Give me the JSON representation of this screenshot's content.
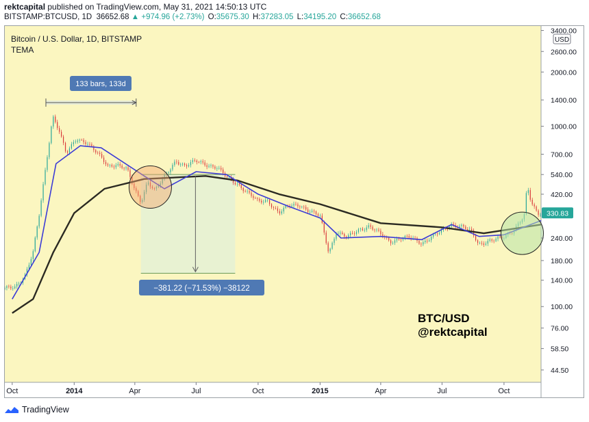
{
  "header": {
    "author": "rektcapital",
    "published_text": "published on TradingView.com, May 31, 2021 14:50:13 UTC",
    "symbol": "BITSTAMP:BTCUSD, 1D",
    "last": "36652.68",
    "change": "▲ +974.96 (+2.73%)",
    "o_label": "O:",
    "o_value": "35675.30",
    "h_label": "H:",
    "h_value": "37283.05",
    "l_label": "L:",
    "l_value": "34195.20",
    "c_label": "C:",
    "c_value": "36652.68"
  },
  "chart_title": "Bitcoin / U.S. Dollar, 1D, BITSTAMP",
  "indicator": "TEMA",
  "currency": "USD",
  "price_tag": "330.83",
  "measure_label": "133 bars, 133d",
  "drop_label": "−381.22 (−71.53%) −38122",
  "watermark_lines": [
    "BTC/USD",
    "@rektcapital"
  ],
  "footer_brand": "TradingView",
  "colors": {
    "background": "#fbf6c0",
    "candle_up": "#26a69a",
    "candle_down": "#d9383a",
    "tema_fast": "#3b3bd6",
    "tema_slow": "#2b2a22",
    "label_box": "#4f79b4"
  },
  "chart_data": {
    "type": "line",
    "y_scale": "log",
    "ylim": [
      38,
      3600
    ],
    "y_ticks": [
      3400,
      2600,
      2000,
      1400,
      1000,
      700,
      540,
      420,
      330.83,
      240,
      180,
      140,
      100,
      76,
      58.5,
      44.5
    ],
    "y_tick_labels": [
      "3400.00",
      "2600.00",
      "2000.00",
      "1400.00",
      "1000.00",
      "700.00",
      "540.00",
      "420.00",
      "330.83",
      "240.00",
      "180.00",
      "140.00",
      "100.00",
      "76.00",
      "58.50",
      "44.50"
    ],
    "x_tick_labels": [
      "Oct",
      "2014",
      "Apr",
      "Jul",
      "Oct",
      "2015",
      "Apr",
      "Jul",
      "Oct"
    ],
    "x_tick_dates": [
      "2013-10-01",
      "2014-01-01",
      "2014-04-01",
      "2014-07-01",
      "2014-10-01",
      "2015-01-01",
      "2015-04-01",
      "2015-07-01",
      "2015-10-01"
    ],
    "x_range": [
      "2013-09-20",
      "2015-11-25"
    ],
    "series": [
      {
        "name": "BTCUSD",
        "x": [
          "2013-09-20",
          "2013-10-05",
          "2013-10-20",
          "2013-11-01",
          "2013-11-10",
          "2013-11-20",
          "2013-11-30",
          "2013-12-10",
          "2013-12-20",
          "2014-01-05",
          "2014-01-20",
          "2014-02-05",
          "2014-02-20",
          "2014-03-05",
          "2014-03-20",
          "2014-04-01",
          "2014-04-10",
          "2014-04-20",
          "2014-05-01",
          "2014-05-15",
          "2014-06-01",
          "2014-06-15",
          "2014-07-01",
          "2014-07-15",
          "2014-08-01",
          "2014-08-15",
          "2014-09-01",
          "2014-09-15",
          "2014-10-01",
          "2014-10-15",
          "2014-11-01",
          "2014-11-15",
          "2014-12-01",
          "2014-12-15",
          "2015-01-01",
          "2015-01-14",
          "2015-01-25",
          "2015-02-10",
          "2015-03-01",
          "2015-03-15",
          "2015-04-01",
          "2015-04-15",
          "2015-05-01",
          "2015-05-15",
          "2015-06-01",
          "2015-06-15",
          "2015-07-01",
          "2015-07-15",
          "2015-08-01",
          "2015-08-15",
          "2015-08-24",
          "2015-09-10",
          "2015-10-01",
          "2015-10-15",
          "2015-11-01",
          "2015-11-04",
          "2015-11-10",
          "2015-11-20",
          "2015-11-25"
        ],
        "y": [
          125,
          128,
          150,
          200,
          320,
          600,
          1150,
          950,
          700,
          850,
          820,
          700,
          600,
          620,
          580,
          440,
          380,
          500,
          440,
          520,
          650,
          600,
          640,
          620,
          590,
          520,
          480,
          430,
          380,
          390,
          330,
          360,
          370,
          340,
          315,
          200,
          260,
          240,
          270,
          280,
          250,
          230,
          240,
          240,
          225,
          245,
          260,
          285,
          280,
          255,
          220,
          235,
          240,
          265,
          330,
          470,
          380,
          320,
          330
        ]
      },
      {
        "name": "TEMA fast",
        "x": [
          "2013-10-01",
          "2013-11-10",
          "2013-12-05",
          "2014-01-10",
          "2014-02-10",
          "2014-04-15",
          "2014-05-15",
          "2014-07-01",
          "2014-08-15",
          "2014-10-01",
          "2014-11-15",
          "2015-01-01",
          "2015-02-01",
          "2015-04-01",
          "2015-06-01",
          "2015-07-15",
          "2015-08-25",
          "2015-10-01",
          "2015-11-25"
        ],
        "y": [
          110,
          200,
          620,
          780,
          760,
          530,
          450,
          560,
          540,
          420,
          360,
          310,
          240,
          245,
          235,
          285,
          245,
          250,
          300
        ]
      },
      {
        "name": "TEMA slow",
        "x": [
          "2013-10-01",
          "2013-11-01",
          "2013-12-01",
          "2014-01-01",
          "2014-02-15",
          "2014-04-15",
          "2014-07-15",
          "2014-09-01",
          "2014-11-01",
          "2015-01-01",
          "2015-04-01",
          "2015-07-01",
          "2015-09-01",
          "2015-11-25"
        ],
        "y": [
          92,
          110,
          200,
          330,
          450,
          510,
          530,
          500,
          420,
          370,
          290,
          275,
          255,
          285
        ]
      }
    ]
  }
}
